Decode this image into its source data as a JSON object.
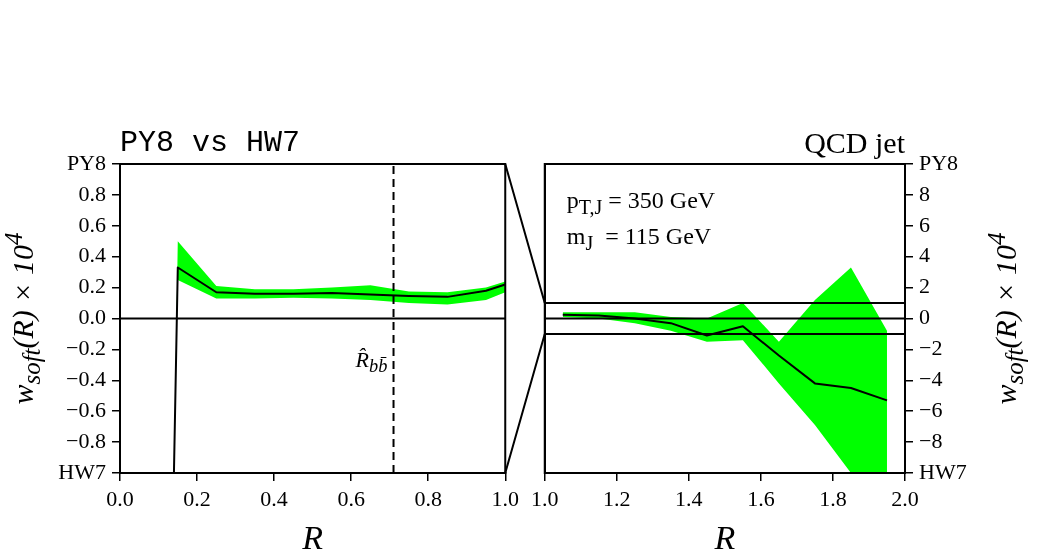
{
  "chart_data": [
    {
      "type": "line",
      "title": "PY8 vs HW7",
      "xlabel": "R",
      "ylabel": "w$_{soft}$(R) × 10$^{4}$",
      "grid": false,
      "legend": false,
      "marker": "none",
      "line_style": "solid",
      "xlim": [
        0,
        1
      ],
      "xticks": [
        {
          "value": 0,
          "label": "0.0"
        },
        {
          "value": 0.2,
          "label": "0.2"
        },
        {
          "value": 0.4,
          "label": "0.4"
        },
        {
          "value": 0.6,
          "label": "0.6"
        },
        {
          "value": 0.8,
          "label": "0.8"
        },
        {
          "value": 1,
          "label": "1.0"
        }
      ],
      "ylim": [
        -1,
        1
      ],
      "yticks": [
        {
          "value": -1,
          "label": "HW7"
        },
        {
          "value": -0.8,
          "label": "−0.8"
        },
        {
          "value": -0.6,
          "label": "−0.6"
        },
        {
          "value": -0.4,
          "label": "−0.4"
        },
        {
          "value": -0.2,
          "label": "−0.2"
        },
        {
          "value": 0,
          "label": "0.0"
        },
        {
          "value": 0.2,
          "label": "0.2"
        },
        {
          "value": 0.4,
          "label": "0.4"
        },
        {
          "value": 0.6,
          "label": "0.6"
        },
        {
          "value": 0.8,
          "label": "0.8"
        },
        {
          "value": 1,
          "label": "PY8"
        }
      ],
      "series": [
        {
          "color": "#000000",
          "x": [
            0.14,
            0.15,
            0.25,
            0.35,
            0.45,
            0.55,
            0.65,
            0.75,
            0.85,
            0.95,
            1.0
          ],
          "values": [
            -1,
            0.33,
            0.17,
            0.16,
            0.16,
            0.165,
            0.155,
            0.145,
            0.14,
            0.18,
            0.22
          ],
          "lower": [
            -1,
            0.25,
            0.13,
            0.13,
            0.135,
            0.13,
            0.12,
            0.1,
            0.09,
            0.12,
            0.17
          ],
          "upper": [
            -1,
            0.5,
            0.21,
            0.19,
            0.19,
            0.2,
            0.215,
            0.175,
            0.17,
            0.2,
            0.24
          ]
        }
      ],
      "ref_lines": [
        {
          "axis": "y",
          "value": 0,
          "color": "#000000",
          "line_style": "solid"
        },
        {
          "axis": "x",
          "value": 0.71,
          "label": "R̂$_{bb̄}$",
          "color": "#000000",
          "line_style": "dashed"
        }
      ]
    },
    {
      "type": "line",
      "title": "QCD jet",
      "xlabel": "R",
      "y2label": "w$_{soft}$(R) × 10$^{4}$",
      "grid": false,
      "legend": false,
      "marker": "none",
      "line_style": "solid",
      "annotations": [
        "p$_{T,J}$ = 350 GeV",
        "m$_{J}$  = 115 GeV"
      ],
      "xlim": [
        1,
        2
      ],
      "xticks": [
        {
          "value": 1,
          "label": "1.0"
        },
        {
          "value": 1.2,
          "label": "1.2"
        },
        {
          "value": 1.4,
          "label": "1.4"
        },
        {
          "value": 1.6,
          "label": "1.6"
        },
        {
          "value": 1.8,
          "label": "1.8"
        },
        {
          "value": 2,
          "label": "2.0"
        }
      ],
      "y2lim": [
        -10,
        10
      ],
      "y2ticks": [
        {
          "value": -10,
          "label": "HW7"
        },
        {
          "value": -8,
          "label": "−8"
        },
        {
          "value": -6,
          "label": "−6"
        },
        {
          "value": -4,
          "label": "−4"
        },
        {
          "value": -2,
          "label": "−2"
        },
        0,
        2,
        4,
        6,
        8,
        {
          "value": 10,
          "label": "PY8"
        }
      ],
      "series": [
        {
          "color": "#000000",
          "axis": "y2",
          "x": [
            1.05,
            1.15,
            1.25,
            1.35,
            1.45,
            1.55,
            1.65,
            1.75,
            1.85,
            1.95
          ],
          "values": [
            0.25,
            0.2,
            0,
            -0.3,
            -1.1,
            -0.5,
            -2.4,
            -4.2,
            -4.5,
            -5.3
          ],
          "lower": [
            0.1,
            0,
            -0.3,
            -0.8,
            -1.5,
            -1.4,
            -4.2,
            -6.9,
            -10,
            -10
          ],
          "upper": [
            0.4,
            0.4,
            0.4,
            0.1,
            0,
            1,
            -1.5,
            1.2,
            3.3,
            -0.8
          ]
        }
      ],
      "ref_lines": [
        {
          "axis": "y2",
          "value": 1,
          "color": "#000000",
          "line_style": "solid"
        },
        {
          "axis": "y2",
          "value": 0,
          "color": "#000000",
          "line_style": "solid"
        },
        {
          "axis": "y2",
          "value": -1,
          "color": "#000000",
          "line_style": "solid"
        }
      ]
    }
  ]
}
